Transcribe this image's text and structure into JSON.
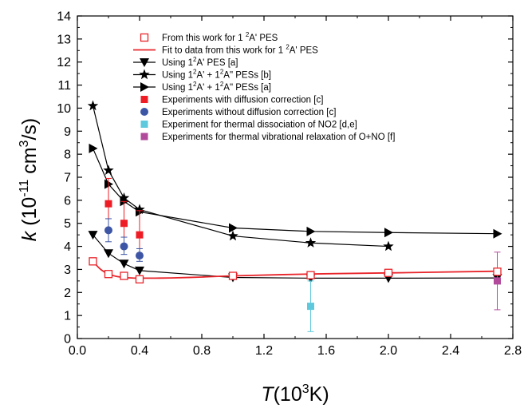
{
  "chart_data": {
    "type": "scatter",
    "xlabel": {
      "main": "T",
      "open": "(10",
      "sup": "3",
      "close": "K)"
    },
    "ylabel": {
      "main": "k",
      "open": " (10",
      "sup": "-11",
      "mid": " cm",
      "sup2": "3",
      "close": "/s)"
    },
    "xlim": [
      0,
      2.8
    ],
    "ylim": [
      0,
      14
    ],
    "xticks": [
      "0.0",
      "0.4",
      "0.8",
      "1.2",
      "1.6",
      "2.0",
      "2.4",
      "2.8"
    ],
    "yticks": [
      "0",
      "1",
      "2",
      "3",
      "4",
      "5",
      "6",
      "7",
      "8",
      "9",
      "10",
      "11",
      "12",
      "13",
      "14"
    ],
    "grid": false,
    "legend_position": "top-center",
    "series": [
      {
        "name": "From this work for 1 ²A' PES",
        "legend": {
          "pre": "From this work for 1 ",
          "sup": "2",
          "post": "A' PES"
        },
        "marker": "open-square",
        "color": "#e8242a",
        "line": false,
        "x": [
          0.1,
          0.2,
          0.3,
          0.4,
          1.0,
          1.5,
          2.0,
          2.7
        ],
        "y": [
          3.35,
          2.8,
          2.72,
          2.57,
          2.72,
          2.75,
          2.85,
          2.9
        ]
      },
      {
        "name": "Fit to data from this work for 1 ²A' PES",
        "legend": {
          "pre": "Fit to data from this work for 1 ",
          "sup": "2",
          "post": "A' PES"
        },
        "marker": "none",
        "color": "#e8242a",
        "line": true,
        "smooth": true,
        "x": [
          0.1,
          0.15,
          0.2,
          0.25,
          0.3,
          0.35,
          0.4,
          0.5,
          0.6,
          0.8,
          1.0,
          1.5,
          2.0,
          2.7
        ],
        "y": [
          3.35,
          3.0,
          2.8,
          2.7,
          2.65,
          2.63,
          2.62,
          2.62,
          2.63,
          2.67,
          2.72,
          2.8,
          2.85,
          2.92
        ]
      },
      {
        "name": "Using 1²A' PES [a]",
        "legend": {
          "pre": "Using 1",
          "sup": "2",
          "post": "A' PES [a]"
        },
        "marker": "triangle-down",
        "color": "#000000",
        "line": true,
        "x": [
          0.1,
          0.2,
          0.3,
          0.4,
          1.0,
          1.5,
          2.0,
          2.7
        ],
        "y": [
          4.5,
          3.7,
          3.25,
          2.95,
          2.65,
          2.62,
          2.62,
          2.63
        ]
      },
      {
        "name": "Using 1²A' + 1²A\" PESs [b]",
        "legend": {
          "pre": "Using 1",
          "sup": "2",
          "mid": "A' + 1",
          "sup2": "2",
          "post": "A\" PESs [b]"
        },
        "marker": "star",
        "color": "#000000",
        "line": true,
        "x": [
          0.1,
          0.2,
          0.3,
          0.4,
          1.0,
          1.5,
          2.0
        ],
        "y": [
          10.1,
          7.3,
          6.1,
          5.6,
          4.45,
          4.15,
          4.0
        ]
      },
      {
        "name": "Using 1²A' + 1²A\" PESs [a]",
        "legend": {
          "pre": "Using 1",
          "sup": "2",
          "mid": "A' + 1",
          "sup2": "2",
          "post": "A\" PESs [a]"
        },
        "marker": "triangle-right",
        "color": "#000000",
        "line": true,
        "x": [
          0.1,
          0.2,
          0.3,
          0.4,
          1.0,
          1.5,
          2.0,
          2.7
        ],
        "y": [
          8.25,
          6.7,
          5.95,
          5.5,
          4.8,
          4.65,
          4.6,
          4.55
        ]
      },
      {
        "name": "Experiments with diffusion correction [c]",
        "legend": {
          "pre": "Experiments with diffusion correction [c]"
        },
        "marker": "filled-square",
        "color": "#ee1c24",
        "line": false,
        "x": [
          0.2,
          0.3,
          0.4
        ],
        "y": [
          5.85,
          5.0,
          4.5
        ],
        "err_low": [
          1.1,
          0.95,
          0.95
        ],
        "err_high": [
          1.1,
          0.95,
          1.05
        ]
      },
      {
        "name": "Experiments without diffusion correction [c]",
        "legend": {
          "pre": "Experiments without diffusion correction [c]"
        },
        "marker": "filled-circle",
        "color": "#3d55a5",
        "line": false,
        "x": [
          0.2,
          0.3,
          0.4
        ],
        "y": [
          4.7,
          4.0,
          3.6
        ],
        "err_low": [
          0.5,
          0.35,
          0.25
        ],
        "err_high": [
          0.5,
          0.4,
          0.3
        ]
      },
      {
        "name": "Experiment for thermal dissociation of NO2 [d,e]",
        "legend": {
          "pre": "Experiment for thermal dissociation of NO2 [d,e]"
        },
        "marker": "filled-square",
        "color": "#5ec8dc",
        "line": false,
        "x": [
          1.5
        ],
        "y": [
          1.4
        ],
        "err_low": [
          1.1
        ],
        "err_high": [
          1.1
        ]
      },
      {
        "name": "Experiments for thermal vibrational relaxation of O+NO [f]",
        "legend": {
          "pre": "Experiments for thermal vibrational relaxation of O+NO [f]"
        },
        "marker": "filled-square",
        "color": "#b24a9c",
        "line": false,
        "x": [
          2.7
        ],
        "y": [
          2.5
        ],
        "err_low": [
          1.25
        ],
        "err_high": [
          1.25
        ]
      }
    ]
  }
}
